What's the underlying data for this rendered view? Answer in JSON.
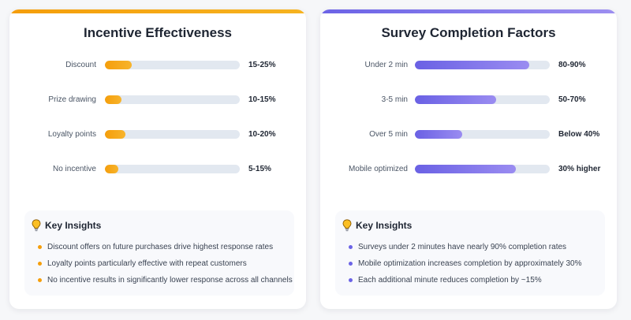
{
  "chart_data": [
    {
      "type": "bar",
      "orientation": "horizontal",
      "title": "Incentive Effectiveness",
      "categories": [
        "Discount",
        "Prize drawing",
        "Loyalty points",
        "No incentive"
      ],
      "values": [
        20,
        12.5,
        15,
        10
      ],
      "value_labels": [
        "15-25%",
        "10-15%",
        "10-20%",
        "5-15%"
      ],
      "xlim": [
        0,
        100
      ],
      "grid": false,
      "color": "#f59e0b"
    },
    {
      "type": "bar",
      "orientation": "horizontal",
      "title": "Survey Completion Factors",
      "categories": [
        "Under 2 min",
        "3-5 min",
        "Over 5 min",
        "Mobile optimized"
      ],
      "values": [
        85,
        60,
        35,
        75
      ],
      "value_labels": [
        "80-90%",
        "50-70%",
        "Below 40%",
        "30% higher"
      ],
      "xlim": [
        0,
        100
      ],
      "grid": false,
      "color": "#6b63e6"
    }
  ],
  "insights": [
    {
      "title": "Key Insights",
      "icon": "lightbulb-icon",
      "items": [
        "Discount offers on future purchases drive highest response rates",
        "Loyalty points particularly effective with repeat customers",
        "No incentive results in significantly lower response across all channels"
      ]
    },
    {
      "title": "Key Insights",
      "icon": "lightbulb-icon",
      "items": [
        "Surveys under 2 minutes have nearly 90% completion rates",
        "Mobile optimization increases completion by approximately 30%",
        "Each additional minute reduces completion by ~15%"
      ]
    }
  ]
}
